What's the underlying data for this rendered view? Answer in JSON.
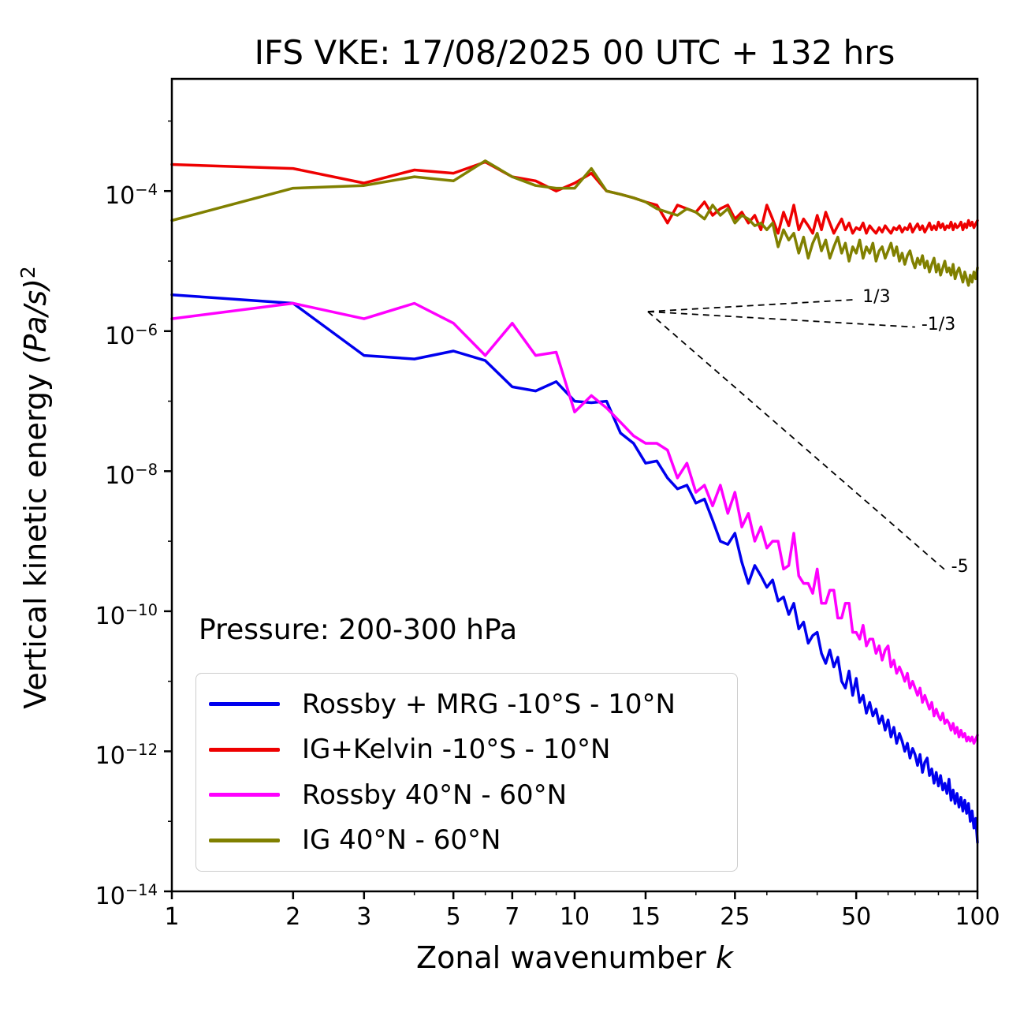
{
  "title": "IFS VKE: 17/08/2025 00 UTC + 132 hrs",
  "annotation": "Pressure: 200-300 hPa",
  "axes": {
    "xlabel_prefix": "Zonal wavenumber ",
    "xlabel_math": "k",
    "ylabel_prefix": "Vertical kinetic energy ",
    "ylabel_math": "(Pa/s)",
    "ylabel_sup": "2"
  },
  "chart_data": {
    "type": "line",
    "x_scale": "log",
    "y_scale": "log",
    "xlabel": "Zonal wavenumber k",
    "ylabel": "Vertical kinetic energy (Pa/s)^2",
    "xlim": [
      1,
      100
    ],
    "ylim": [
      1e-14,
      0.004
    ],
    "x_ticks": [
      1,
      2,
      3,
      5,
      7,
      10,
      15,
      25,
      50,
      100
    ],
    "x_minor_ticks": [
      4,
      6,
      8,
      9,
      20,
      30,
      40,
      60,
      70,
      80,
      90
    ],
    "y_tick_exponents": [
      -4,
      -6,
      -8,
      -10,
      -12,
      -14
    ],
    "y_minor_tick_exponents": [
      -3,
      -5,
      -7,
      -9,
      -11,
      -13
    ],
    "legend_position": "lower-left",
    "grid": false,
    "x": [
      1,
      2,
      3,
      4,
      5,
      6,
      7,
      8,
      9,
      10,
      11,
      12,
      13,
      14,
      15,
      16,
      17,
      18,
      19,
      20,
      21,
      22,
      23,
      24,
      25,
      26,
      27,
      28,
      29,
      30,
      31,
      32,
      33,
      34,
      35,
      36,
      37,
      38,
      39,
      40,
      41,
      42,
      43,
      44,
      45,
      46,
      47,
      48,
      49,
      50,
      51,
      52,
      53,
      54,
      55,
      56,
      57,
      58,
      59,
      60,
      61,
      62,
      63,
      64,
      65,
      66,
      67,
      68,
      69,
      70,
      71,
      72,
      73,
      74,
      75,
      76,
      77,
      78,
      79,
      80,
      81,
      82,
      83,
      84,
      85,
      86,
      87,
      88,
      89,
      90,
      91,
      92,
      93,
      94,
      95,
      96,
      97,
      98,
      99,
      100
    ],
    "series": [
      {
        "name": "Rossby + MRG -10°S - 10°N",
        "color": "#0000ee",
        "values": [
          3.3e-06,
          2.5e-06,
          4.5e-07,
          4e-07,
          5.2e-07,
          3.8e-07,
          1.6e-07,
          1.4e-07,
          1.9e-07,
          1e-07,
          9.5e-08,
          1e-07,
          3.5e-08,
          2.5e-08,
          1.3e-08,
          1.4e-08,
          8e-09,
          5.6e-09,
          6.3e-09,
          3.5e-09,
          4e-09,
          2e-09,
          1e-09,
          9e-10,
          1.3e-09,
          5e-10,
          2.5e-10,
          4.5e-10,
          3.2e-10,
          2.2e-10,
          2.8e-10,
          1.4e-10,
          1.6e-10,
          9e-11,
          1.3e-10,
          5.6e-11,
          7e-11,
          3.5e-11,
          4.5e-11,
          5e-11,
          2.5e-11,
          1.8e-11,
          2.8e-11,
          1.6e-11,
          2.2e-11,
          1e-11,
          8e-12,
          1.4e-11,
          6.3e-12,
          1.1e-11,
          5e-12,
          6.3e-12,
          3.5e-12,
          5e-12,
          3.2e-12,
          4e-12,
          2.5e-12,
          3.2e-12,
          2e-12,
          2.8e-12,
          1.6e-12,
          2.2e-12,
          1.3e-12,
          1.8e-12,
          1.4e-12,
          1e-12,
          1.3e-12,
          8e-13,
          1.1e-12,
          9e-13,
          6.3e-13,
          9e-13,
          5e-13,
          7e-13,
          8e-13,
          4.5e-13,
          5.6e-13,
          3.5e-13,
          5e-13,
          3.2e-13,
          4.5e-13,
          2.8e-13,
          3.5e-13,
          2.5e-13,
          4e-13,
          2e-13,
          2.8e-13,
          1.8e-13,
          2.5e-13,
          1.6e-13,
          2.2e-13,
          1.4e-13,
          2e-13,
          1.3e-13,
          1.8e-13,
          1e-13,
          1.4e-13,
          8e-14,
          1.1e-13,
          5e-14
        ]
      },
      {
        "name": "IG+Kelvin -10°S - 10°N",
        "color": "#ee0000",
        "values": [
          0.00024,
          0.00021,
          0.00013,
          0.0002,
          0.00018,
          0.00026,
          0.00016,
          0.00014,
          0.0001,
          0.00013,
          0.00018,
          0.0001,
          9e-05,
          8e-05,
          7e-05,
          6.3e-05,
          3.5e-05,
          6.3e-05,
          5.6e-05,
          5e-05,
          7e-05,
          4.5e-05,
          5.6e-05,
          6.3e-05,
          4e-05,
          5e-05,
          3.5e-05,
          4.5e-05,
          2.8e-05,
          6.3e-05,
          4e-05,
          2.5e-05,
          5e-05,
          3.2e-05,
          6.3e-05,
          2.8e-05,
          4e-05,
          3.2e-05,
          2.5e-05,
          4.5e-05,
          2.8e-05,
          5e-05,
          3.5e-05,
          2.5e-05,
          3.2e-05,
          4e-05,
          2.8e-05,
          3.5e-05,
          2.5e-05,
          3e-05,
          2.8e-05,
          3.5e-05,
          2.5e-05,
          3.2e-05,
          2.8e-05,
          2.5e-05,
          3e-05,
          2.6e-05,
          3.2e-05,
          2.8e-05,
          2.5e-05,
          3e-05,
          2.8e-05,
          3.2e-05,
          2.6e-05,
          3e-05,
          2.8e-05,
          3.4e-05,
          2.6e-05,
          3e-05,
          3.4e-05,
          2.8e-05,
          3.2e-05,
          2.6e-05,
          3e-05,
          3.5e-05,
          2.8e-05,
          3.2e-05,
          2.8e-05,
          3.6e-05,
          3e-05,
          3.4e-05,
          2.8e-05,
          3.2e-05,
          3e-05,
          3.6e-05,
          2.8e-05,
          3.4e-05,
          3e-05,
          3.2e-05,
          3.6e-05,
          2.8e-05,
          3.4e-05,
          3e-05,
          3.8e-05,
          3.2e-05,
          3.6e-05,
          3e-05,
          3.4e-05,
          3.8e-05
        ]
      },
      {
        "name": "Rossby 40°N - 60°N",
        "color": "#ff00ff",
        "values": [
          1.5e-06,
          2.5e-06,
          1.5e-06,
          2.5e-06,
          1.3e-06,
          4.5e-07,
          1.3e-06,
          4.5e-07,
          5e-07,
          7e-08,
          1.2e-07,
          8e-08,
          5e-08,
          3.2e-08,
          2.5e-08,
          2.5e-08,
          2e-08,
          8e-09,
          1.3e-08,
          5e-09,
          6.3e-09,
          3.2e-09,
          6.3e-09,
          2.5e-09,
          5e-09,
          1.6e-09,
          2.5e-09,
          1e-09,
          1.6e-09,
          8e-10,
          1e-09,
          1e-09,
          4e-10,
          4.5e-10,
          1.3e-09,
          3.2e-10,
          2.5e-10,
          2.5e-10,
          1.8e-10,
          4e-10,
          1.3e-10,
          1.3e-10,
          2e-10,
          2e-10,
          8e-11,
          8e-11,
          1.3e-10,
          1.3e-10,
          5e-11,
          5e-11,
          4e-11,
          6.3e-11,
          3.2e-11,
          4e-11,
          4e-11,
          2.5e-11,
          3.2e-11,
          2e-11,
          2.8e-11,
          3.2e-11,
          1.6e-11,
          2e-11,
          1.3e-11,
          1.6e-11,
          1.3e-11,
          1e-11,
          1.3e-11,
          8e-12,
          1e-11,
          8e-12,
          6.3e-12,
          8e-12,
          5e-12,
          6.3e-12,
          5e-12,
          4e-12,
          5e-12,
          3.2e-12,
          4e-12,
          3.2e-12,
          2.8e-12,
          3.5e-12,
          2.5e-12,
          2.8e-12,
          2.5e-12,
          2e-12,
          2.5e-12,
          1.8e-12,
          2.2e-12,
          1.6e-12,
          2e-12,
          1.6e-12,
          1.8e-12,
          1.4e-12,
          1.6e-12,
          1.4e-12,
          1.6e-12,
          1.3e-12,
          1.5e-12,
          1.7e-12
        ]
      },
      {
        "name": "IG 40°N - 60°N",
        "color": "#808000",
        "values": [
          3.8e-05,
          0.00011,
          0.00012,
          0.00016,
          0.00014,
          0.00027,
          0.00016,
          0.00012,
          0.00011,
          0.00011,
          0.00021,
          0.0001,
          9e-05,
          8e-05,
          7e-05,
          5.6e-05,
          5e-05,
          4.5e-05,
          5.6e-05,
          5e-05,
          4e-05,
          6.3e-05,
          4.5e-05,
          5.6e-05,
          3.5e-05,
          4.5e-05,
          4e-05,
          3.2e-05,
          3.5e-05,
          2.8e-05,
          3.5e-05,
          1.6e-05,
          2.8e-05,
          2e-05,
          2.5e-05,
          1.3e-05,
          2.2e-05,
          1.1e-05,
          1.8e-05,
          2.5e-05,
          1.4e-05,
          2e-05,
          1.1e-05,
          1.6e-05,
          2.2e-05,
          1.3e-05,
          1.8e-05,
          1e-05,
          1.6e-05,
          1.3e-05,
          2e-05,
          1.1e-05,
          1.6e-05,
          1.3e-05,
          1.8e-05,
          1e-05,
          1.4e-05,
          1.6e-05,
          1.1e-05,
          1.4e-05,
          1.8e-05,
          1.2e-05,
          1.6e-05,
          1e-05,
          1.3e-05,
          9e-06,
          1.2e-05,
          1.4e-05,
          1e-05,
          8e-06,
          1.1e-05,
          9e-06,
          1.2e-05,
          8e-06,
          1e-05,
          7e-06,
          9e-06,
          1.1e-05,
          7e-06,
          9e-06,
          6.3e-06,
          8e-06,
          1e-05,
          7e-06,
          8e-06,
          6.3e-06,
          9e-06,
          5.6e-06,
          7e-06,
          8e-06,
          6.3e-06,
          5e-06,
          7e-06,
          5.6e-06,
          4.5e-06,
          6.3e-06,
          5e-06,
          7e-06,
          5.6e-06,
          8e-06
        ]
      }
    ],
    "ref_lines": [
      {
        "label": "1/3",
        "slope": 0.3333,
        "k0": 15.2,
        "v0": 1.9e-06,
        "k1": 50
      },
      {
        "label": "-1/3",
        "slope": -0.3333,
        "k0": 15.2,
        "v0": 1.9e-06,
        "k1": 70
      },
      {
        "label": "-5",
        "slope": -5,
        "k0": 15.2,
        "v0": 1.9e-06,
        "k1": 83
      }
    ]
  }
}
